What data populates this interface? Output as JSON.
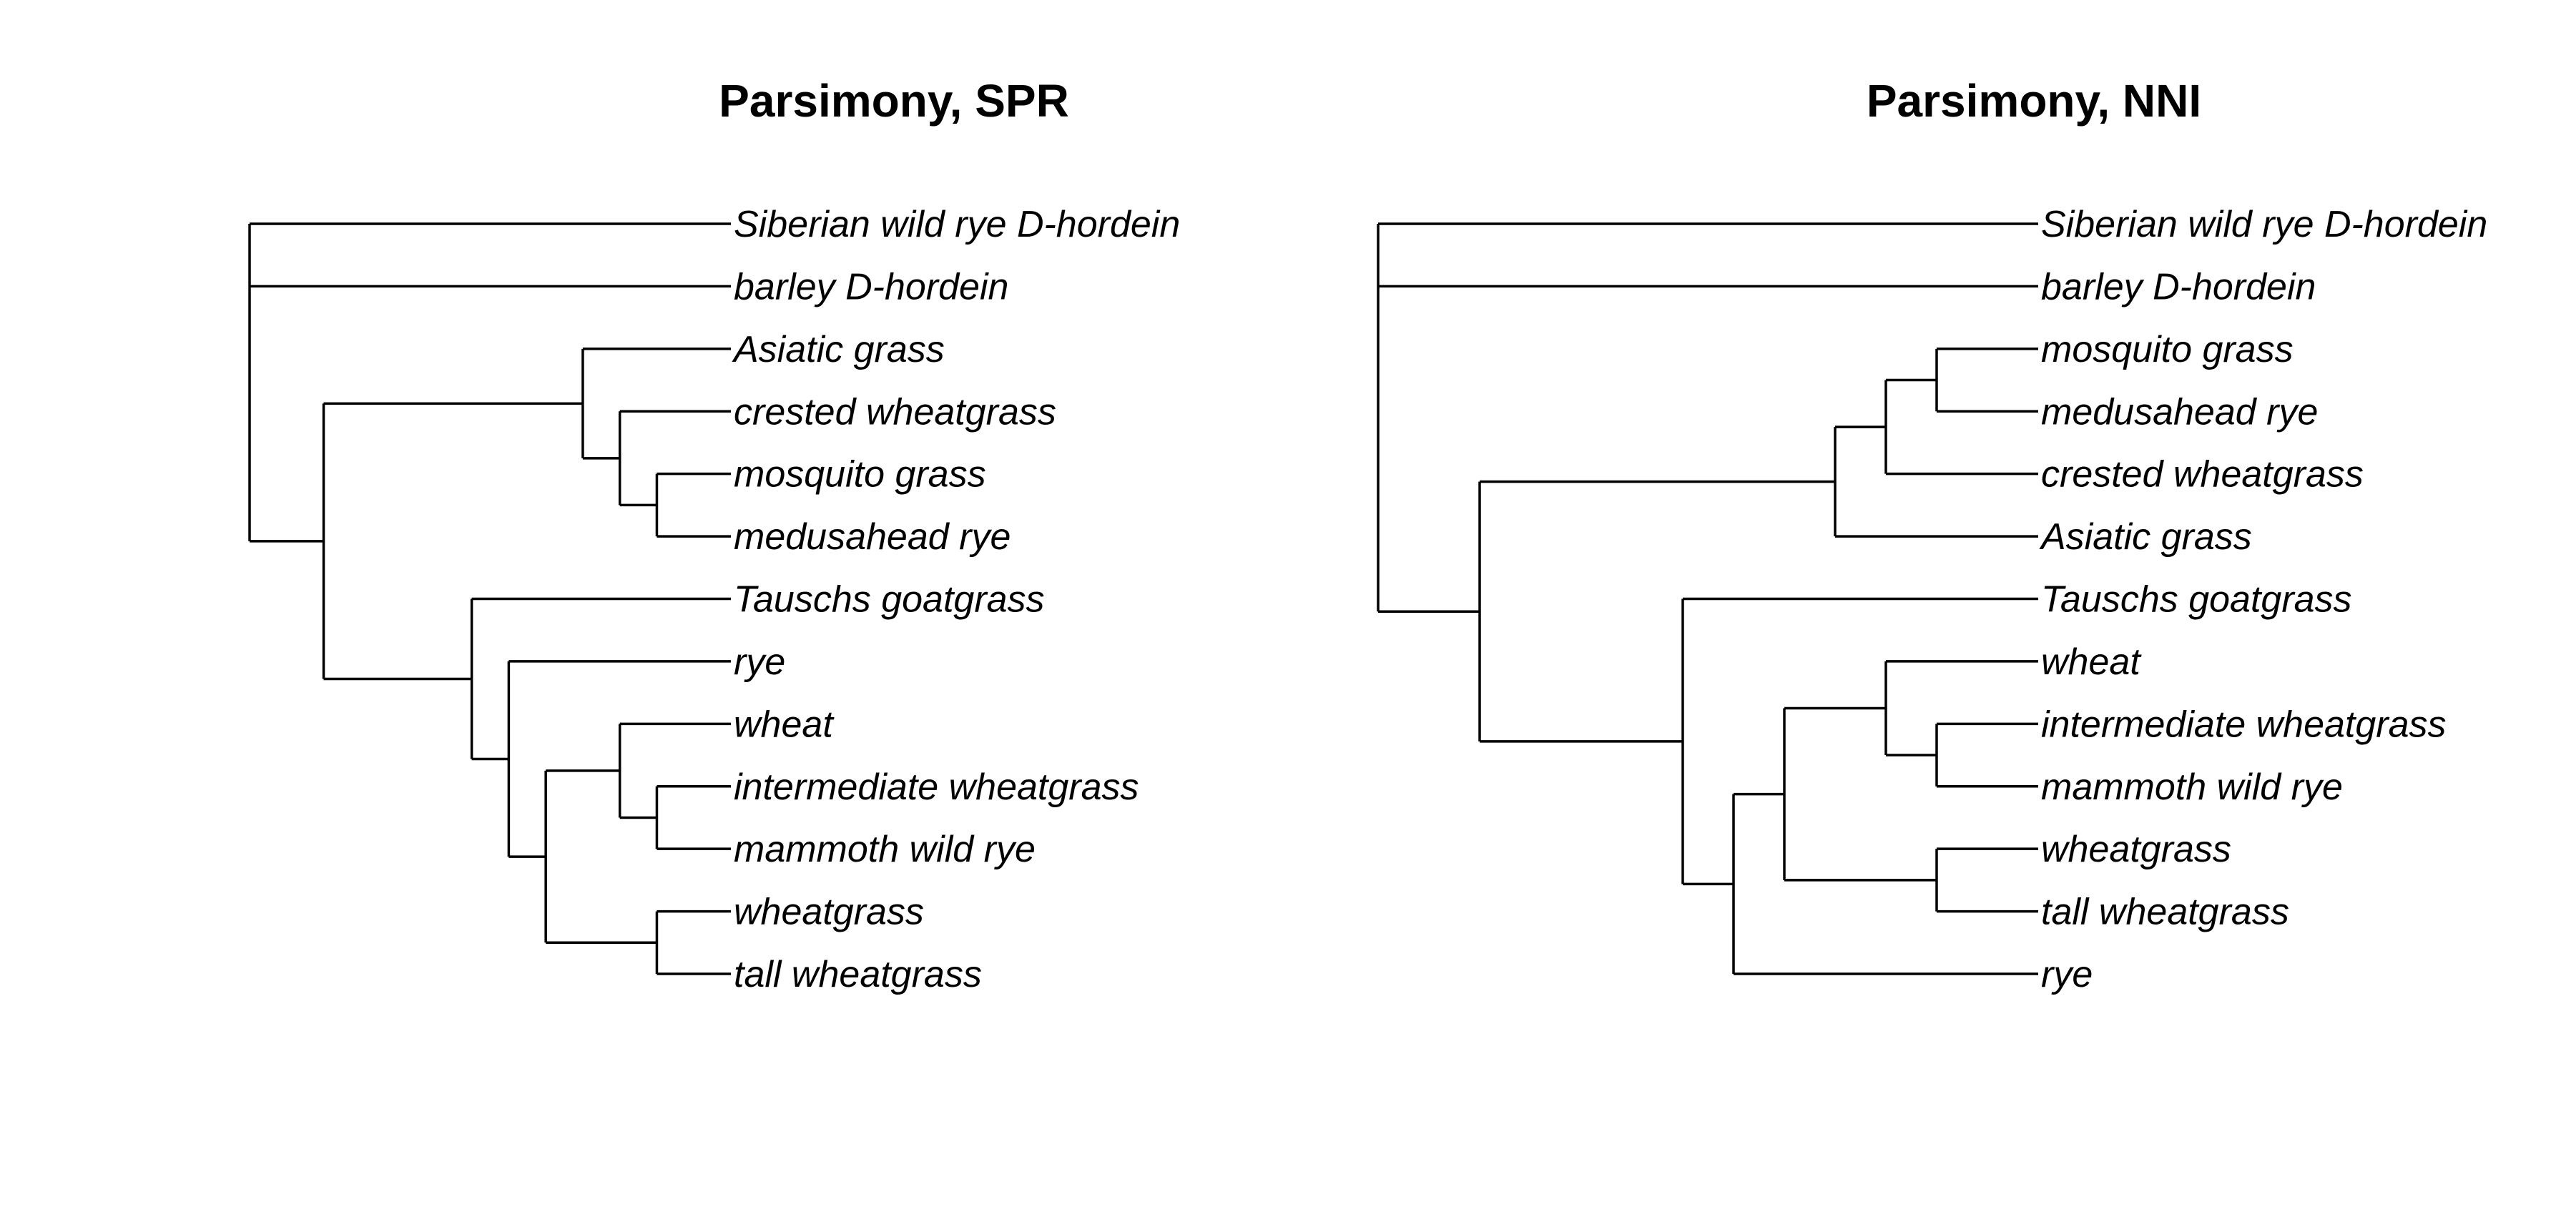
{
  "trees": [
    {
      "title": "Parsimony, SPR",
      "tree": [
        {
          "label": "Siberian wild rye D-hordein"
        },
        {
          "label": "barley D-hordein"
        },
        [
          [
            {
              "label": "Asiatic grass"
            },
            [
              {
                "label": "crested wheatgrass"
              },
              [
                {
                  "label": "mosquito grass"
                },
                {
                  "label": "medusahead rye"
                }
              ]
            ]
          ],
          [
            {
              "label": "Tauschs goatgrass"
            },
            [
              {
                "label": "rye"
              },
              [
                [
                  {
                    "label": "wheat"
                  },
                  [
                    {
                      "label": "intermediate wheatgrass"
                    },
                    {
                      "label": "mammoth wild rye"
                    }
                  ]
                ],
                [
                  {
                    "label": "wheatgrass"
                  },
                  {
                    "label": "tall wheatgrass"
                  }
                ]
              ]
            ]
          ]
        ]
      ]
    },
    {
      "title": "Parsimony, NNI",
      "tree": [
        {
          "label": "Siberian wild rye D-hordein"
        },
        {
          "label": "barley D-hordein"
        },
        [
          [
            [
              [
                {
                  "label": "mosquito grass"
                },
                {
                  "label": "medusahead rye"
                }
              ],
              {
                "label": "crested wheatgrass"
              }
            ],
            {
              "label": "Asiatic grass"
            }
          ],
          [
            {
              "label": "Tauschs goatgrass"
            },
            [
              [
                [
                  {
                    "label": "wheat"
                  },
                  [
                    {
                      "label": "intermediate wheatgrass"
                    },
                    {
                      "label": "mammoth wild rye"
                    }
                  ]
                ],
                [
                  {
                    "label": "wheatgrass"
                  },
                  {
                    "label": "tall wheatgrass"
                  }
                ]
              ],
              {
                "label": "rye"
              }
            ]
          ]
        ]
      ]
    }
  ]
}
